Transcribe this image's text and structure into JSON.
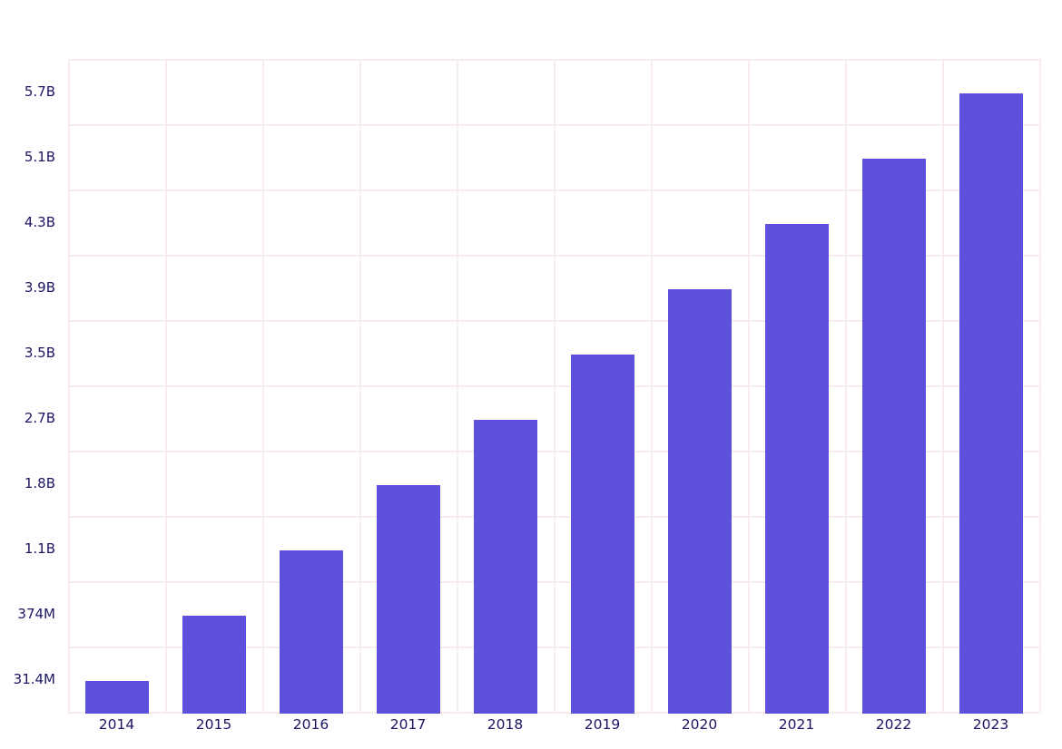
{
  "colors": {
    "bar": "#5D51DB",
    "grid": "#F8ECEC",
    "text": "#1B1563",
    "background": "#FFFFFF"
  },
  "chart_data": {
    "type": "bar",
    "categories": [
      "2014",
      "2015",
      "2016",
      "2017",
      "2018",
      "2019",
      "2020",
      "2021",
      "2022",
      "2023"
    ],
    "values": [
      31400000,
      374000000,
      1100000000,
      1800000000,
      2700000000,
      3500000000,
      3900000000,
      4300000000,
      5100000000,
      5700000000
    ],
    "value_labels": [
      "31.4M",
      "374M",
      "1.1B",
      "1.8B",
      "2.7B",
      "3.5B",
      "3.9B",
      "4.3B",
      "5.1B",
      "5.7B"
    ],
    "y_tick_labels_top_to_bottom": [
      "5.7B",
      "5.1B",
      "4.3B",
      "3.9B",
      "3.5B",
      "2.7B",
      "1.8B",
      "1.1B",
      "374M",
      "31.4M"
    ],
    "title": "",
    "xlabel": "",
    "ylabel": "",
    "grid": true,
    "legend": false,
    "y_scale": "nonlinear: each successive bar tops one gridline row higher; ticks placed at bar-top values",
    "bar_color": "#5D51DB"
  }
}
